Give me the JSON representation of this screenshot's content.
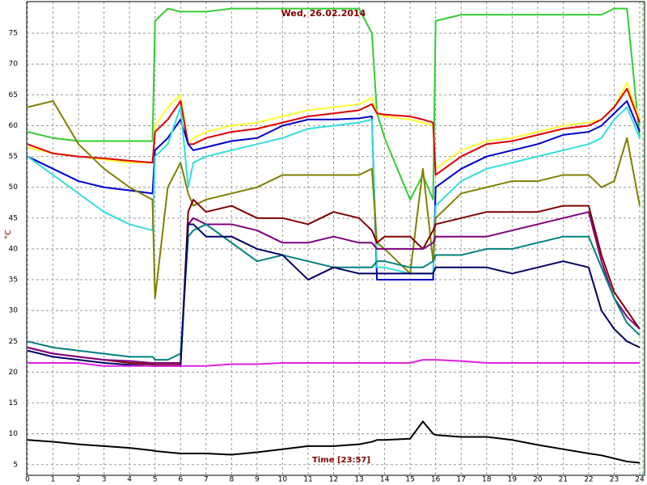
{
  "chart_data": {
    "type": "line",
    "title": "Wed, 26.02.2014",
    "x_label": "Time [23:57]",
    "y_label": "°C",
    "x": [
      0,
      1,
      2,
      3,
      4,
      4.9,
      5,
      5.5,
      6,
      6.3,
      6.5,
      7,
      8,
      9,
      10,
      11,
      12,
      13,
      13.5,
      13.7,
      14,
      15,
      15.5,
      15.9,
      16,
      17,
      18,
      19,
      20,
      21,
      22,
      22.5,
      23,
      23.5,
      24
    ],
    "series": [
      {
        "color": "#33cc33",
        "values": [
          59,
          58,
          57.5,
          57.5,
          57.5,
          57.5,
          77,
          79,
          78.5,
          78.5,
          78.5,
          78.5,
          79,
          79,
          79,
          79,
          79,
          79,
          75,
          62,
          58,
          48,
          52,
          48,
          77,
          78,
          78,
          78,
          78,
          78,
          78,
          78,
          79,
          79,
          58
        ]
      },
      {
        "color": "#ffff33",
        "values": [
          56.5,
          55.5,
          55,
          54.5,
          54,
          54,
          60,
          63,
          65,
          57,
          58,
          59,
          60,
          60.5,
          61.5,
          62.5,
          63,
          63.5,
          64.5,
          62,
          61.5,
          61,
          60.5,
          60,
          53,
          56,
          57.5,
          58,
          59,
          60,
          60.5,
          61,
          63,
          67,
          61
        ]
      },
      {
        "color": "#dd0000",
        "values": [
          57,
          55.5,
          55,
          54.7,
          54.3,
          54,
          59,
          61,
          64,
          57,
          57,
          58,
          59,
          59.5,
          60.5,
          61.5,
          62,
          62.5,
          63.5,
          62,
          61.8,
          61.5,
          61,
          60.5,
          52,
          55,
          57,
          57.5,
          58.5,
          59.5,
          60,
          61,
          63,
          66,
          60.5
        ]
      },
      {
        "color": "#0000cc",
        "values": [
          55,
          53,
          51,
          50,
          49.5,
          49,
          56,
          58,
          61,
          57,
          56,
          56.5,
          57.5,
          58,
          60,
          61,
          61,
          61.2,
          61.5,
          35,
          35,
          35,
          35,
          35,
          50,
          53,
          55,
          56,
          57,
          58.5,
          59,
          60,
          62,
          64,
          59
        ]
      },
      {
        "color": "#33dddd",
        "values": [
          55,
          52,
          49,
          46,
          44,
          43,
          55,
          57,
          63,
          50,
          54,
          55,
          56,
          57,
          58,
          59.5,
          60,
          60.5,
          61,
          37,
          37,
          36,
          36,
          36,
          47,
          51,
          53,
          54,
          55,
          56,
          57,
          58,
          61,
          63,
          58
        ]
      },
      {
        "color": "#808000",
        "values": [
          63,
          64,
          57,
          53,
          50,
          48,
          32,
          50,
          54,
          49,
          47,
          48,
          49,
          50,
          52,
          52,
          52,
          52,
          53,
          41,
          40,
          36,
          53,
          38,
          45,
          49,
          50,
          51,
          51,
          52,
          52,
          50,
          51,
          58,
          47
        ]
      },
      {
        "color": "#800000",
        "values": [
          24,
          23,
          22.5,
          22,
          21.5,
          21.3,
          21.2,
          21.2,
          21.2,
          46,
          48,
          46,
          47,
          45,
          45,
          44,
          46,
          45,
          43,
          41,
          42,
          42,
          40,
          43,
          44,
          45,
          46,
          46,
          46,
          47,
          47,
          39,
          33,
          30,
          27
        ]
      },
      {
        "color": "#800080",
        "values": [
          24,
          23,
          22.5,
          22,
          21.8,
          21.5,
          21.5,
          21.5,
          21.5,
          44,
          45,
          44,
          44,
          43,
          41,
          41,
          42,
          41,
          41,
          40,
          40,
          40,
          40,
          41,
          42,
          42,
          42,
          43,
          44,
          45,
          46,
          38,
          32,
          29,
          27
        ]
      },
      {
        "color": "#008080",
        "values": [
          25,
          24,
          23.5,
          23,
          22.5,
          22.5,
          22,
          22,
          23,
          42,
          43,
          44,
          41,
          38,
          39,
          38,
          37,
          37,
          37,
          38,
          38,
          37,
          37,
          38,
          39,
          39,
          40,
          40,
          41,
          42,
          42,
          37,
          32,
          28,
          26
        ]
      },
      {
        "color": "#000066",
        "values": [
          23.5,
          22.5,
          22,
          21.5,
          21.2,
          21,
          21,
          21,
          21,
          44,
          44,
          42,
          42,
          40,
          39,
          35,
          37,
          36,
          36,
          36,
          36,
          36,
          36,
          36,
          37,
          37,
          37,
          36,
          37,
          38,
          37,
          30,
          27,
          25,
          24
        ]
      },
      {
        "color": "#e020e0",
        "values": [
          21.5,
          21.5,
          21.5,
          21,
          21,
          21,
          21,
          21,
          21,
          21,
          21,
          21,
          21.3,
          21.3,
          21.5,
          21.5,
          21.5,
          21.5,
          21.5,
          21.5,
          21.5,
          21.5,
          22,
          22,
          22,
          21.8,
          21.5,
          21.5,
          21.5,
          21.5,
          21.5,
          21.5,
          21.5,
          21.5,
          21.5
        ]
      },
      {
        "color": "#000000",
        "values": [
          9,
          8.7,
          8.3,
          8,
          7.7,
          7.3,
          7.2,
          7,
          6.8,
          6.8,
          6.8,
          6.8,
          6.6,
          7,
          7.5,
          8,
          8,
          8.3,
          8.7,
          9,
          9,
          9.2,
          12,
          10,
          9.8,
          9.5,
          9.5,
          9,
          8.2,
          7.5,
          6.8,
          6.5,
          6,
          5.5,
          5.3
        ]
      }
    ],
    "xlim": [
      0,
      24
    ],
    "ylim": [
      3,
      80
    ],
    "xticks": [
      0,
      1,
      2,
      3,
      4,
      5,
      6,
      7,
      8,
      9,
      10,
      11,
      12,
      13,
      14,
      15,
      16,
      17,
      18,
      19,
      20,
      21,
      22,
      23,
      24
    ],
    "yticks": [
      5,
      10,
      15,
      20,
      25,
      30,
      35,
      40,
      45,
      50,
      55,
      60,
      65,
      70,
      75
    ],
    "grid": true
  }
}
